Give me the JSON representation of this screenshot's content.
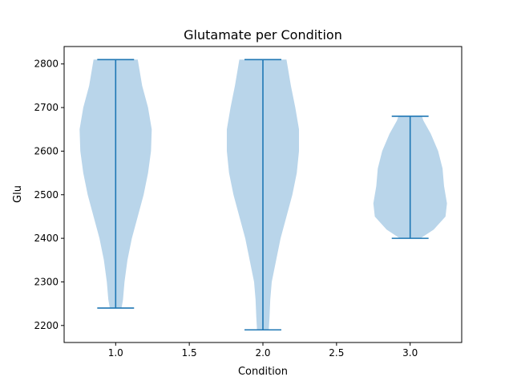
{
  "chart_data": {
    "type": "violin",
    "title": "Glutamate per Condition",
    "xlabel": "Condition",
    "ylabel": "Glu",
    "xlim": [
      0.65,
      3.35
    ],
    "ylim": [
      2161,
      2840
    ],
    "xticks": [
      1.0,
      1.5,
      2.0,
      2.5,
      3.0
    ],
    "xtick_labels": [
      "1.0",
      "1.5",
      "2.0",
      "2.5",
      "3.0"
    ],
    "yticks": [
      2200,
      2300,
      2400,
      2500,
      2600,
      2700,
      2800
    ],
    "ytick_labels": [
      "2200",
      "2300",
      "2400",
      "2500",
      "2600",
      "2700",
      "2800"
    ],
    "grid": false,
    "body_color": "#b9d5ea",
    "line_color": "#1f77b4",
    "violins": [
      {
        "position": 1.0,
        "min": 2240,
        "max": 2810,
        "profile": [
          [
            2240,
            0.04
          ],
          [
            2260,
            0.05
          ],
          [
            2300,
            0.06
          ],
          [
            2350,
            0.08
          ],
          [
            2400,
            0.11
          ],
          [
            2450,
            0.15
          ],
          [
            2500,
            0.19
          ],
          [
            2550,
            0.22
          ],
          [
            2600,
            0.24
          ],
          [
            2650,
            0.245
          ],
          [
            2700,
            0.22
          ],
          [
            2750,
            0.18
          ],
          [
            2790,
            0.16
          ],
          [
            2810,
            0.15
          ]
        ]
      },
      {
        "position": 2.0,
        "min": 2190,
        "max": 2810,
        "profile": [
          [
            2190,
            0.04
          ],
          [
            2220,
            0.045
          ],
          [
            2260,
            0.05
          ],
          [
            2300,
            0.06
          ],
          [
            2350,
            0.09
          ],
          [
            2400,
            0.12
          ],
          [
            2450,
            0.16
          ],
          [
            2500,
            0.2
          ],
          [
            2550,
            0.23
          ],
          [
            2600,
            0.245
          ],
          [
            2650,
            0.245
          ],
          [
            2700,
            0.22
          ],
          [
            2750,
            0.19
          ],
          [
            2790,
            0.17
          ],
          [
            2810,
            0.16
          ]
        ]
      },
      {
        "position": 3.0,
        "min": 2400,
        "max": 2680,
        "profile": [
          [
            2400,
            0.07
          ],
          [
            2420,
            0.16
          ],
          [
            2450,
            0.24
          ],
          [
            2480,
            0.25
          ],
          [
            2520,
            0.23
          ],
          [
            2560,
            0.22
          ],
          [
            2600,
            0.19
          ],
          [
            2640,
            0.14
          ],
          [
            2670,
            0.09
          ],
          [
            2680,
            0.08
          ]
        ]
      }
    ]
  }
}
